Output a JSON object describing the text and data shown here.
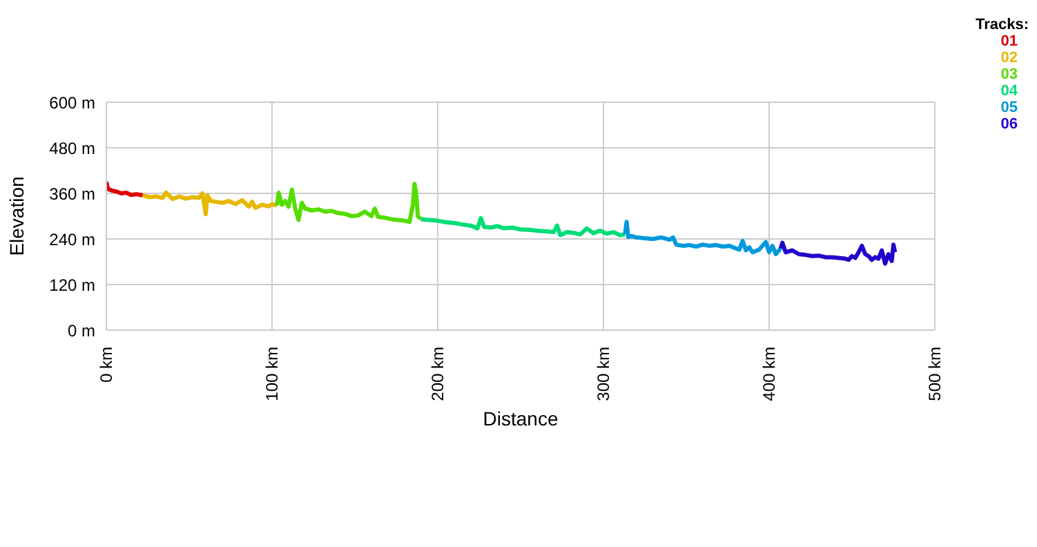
{
  "chart_data": {
    "type": "line",
    "xlabel": "Distance",
    "ylabel": "Elevation",
    "legend_title": "Tracks:",
    "legend": "top right",
    "grid": true,
    "xlim": [
      0,
      500
    ],
    "xticks": [
      {
        "value": 0,
        "label": "0 km"
      },
      {
        "value": 100,
        "label": "100 km"
      },
      {
        "value": 200,
        "label": "200 km"
      },
      {
        "value": 300,
        "label": "300 km"
      },
      {
        "value": 400,
        "label": "400 km"
      },
      {
        "value": 500,
        "label": "500 km"
      }
    ],
    "ylim": [
      0,
      600
    ],
    "yticks": [
      {
        "value": 0,
        "label": "0 m"
      },
      {
        "value": 120,
        "label": "120 m"
      },
      {
        "value": 240,
        "label": "240 m"
      },
      {
        "value": 360,
        "label": "360 m"
      },
      {
        "value": 480,
        "label": "480 m"
      },
      {
        "value": 600,
        "label": "600 m"
      }
    ],
    "series": [
      {
        "name": "01",
        "color": "#e00000",
        "x": [
          0,
          1,
          3,
          6,
          9,
          12,
          15,
          18,
          22
        ],
        "values": [
          390,
          372,
          368,
          365,
          360,
          362,
          356,
          358,
          355
        ]
      },
      {
        "name": "02",
        "color": "#e6b800",
        "x": [
          22,
          26,
          30,
          34,
          36,
          40,
          44,
          48,
          52,
          56,
          58,
          60,
          61,
          63,
          66,
          70,
          74,
          78,
          82,
          86,
          88,
          90,
          94,
          98,
          100,
          103
        ],
        "values": [
          355,
          350,
          352,
          348,
          362,
          345,
          352,
          346,
          350,
          348,
          360,
          305,
          355,
          340,
          338,
          335,
          340,
          332,
          342,
          325,
          338,
          322,
          330,
          326,
          332,
          328
        ]
      },
      {
        "name": "03",
        "color": "#55dd00",
        "x": [
          103,
          104,
          106,
          108,
          110,
          112,
          114,
          116,
          118,
          120,
          124,
          128,
          132,
          136,
          140,
          144,
          148,
          152,
          156,
          160,
          162,
          164,
          168,
          172,
          176,
          180,
          183,
          185,
          186,
          187,
          188,
          190
        ],
        "values": [
          328,
          362,
          330,
          340,
          325,
          370,
          320,
          290,
          335,
          320,
          315,
          318,
          312,
          314,
          308,
          306,
          300,
          302,
          312,
          300,
          320,
          298,
          296,
          292,
          290,
          288,
          285,
          330,
          385,
          360,
          300,
          292
        ]
      },
      {
        "name": "04",
        "color": "#00dd77",
        "x": [
          190,
          195,
          200,
          205,
          210,
          215,
          220,
          224,
          226,
          228,
          232,
          236,
          240,
          245,
          250,
          255,
          260,
          265,
          270,
          272,
          274,
          278,
          282,
          286,
          290,
          294,
          298,
          302,
          306,
          310,
          313
        ],
        "values": [
          292,
          290,
          288,
          284,
          282,
          278,
          275,
          268,
          295,
          272,
          270,
          274,
          268,
          270,
          265,
          264,
          262,
          260,
          258,
          275,
          250,
          258,
          256,
          252,
          268,
          255,
          262,
          254,
          258,
          250,
          252
        ]
      },
      {
        "name": "05",
        "color": "#0099dd",
        "x": [
          313,
          314,
          315,
          317,
          320,
          325,
          330,
          335,
          340,
          342,
          344,
          348,
          352,
          356,
          360,
          364,
          368,
          372,
          376,
          380,
          382,
          384,
          386,
          388,
          390,
          394,
          398,
          400,
          402,
          404,
          407
        ],
        "values": [
          252,
          285,
          245,
          248,
          244,
          242,
          240,
          244,
          238,
          244,
          225,
          222,
          224,
          220,
          225,
          222,
          224,
          220,
          222,
          215,
          212,
          235,
          210,
          218,
          205,
          212,
          232,
          205,
          222,
          200,
          215
        ]
      },
      {
        "name": "06",
        "color": "#2200cc",
        "x": [
          407,
          408,
          410,
          414,
          418,
          422,
          426,
          430,
          434,
          438,
          442,
          446,
          448,
          450,
          452,
          454,
          456,
          458,
          460,
          462,
          464,
          466,
          468,
          470,
          472,
          474,
          475,
          476
        ],
        "values": [
          215,
          230,
          205,
          210,
          200,
          198,
          195,
          196,
          192,
          192,
          190,
          188,
          185,
          195,
          190,
          205,
          222,
          200,
          195,
          185,
          192,
          188,
          210,
          175,
          200,
          182,
          225,
          205
        ]
      }
    ]
  }
}
